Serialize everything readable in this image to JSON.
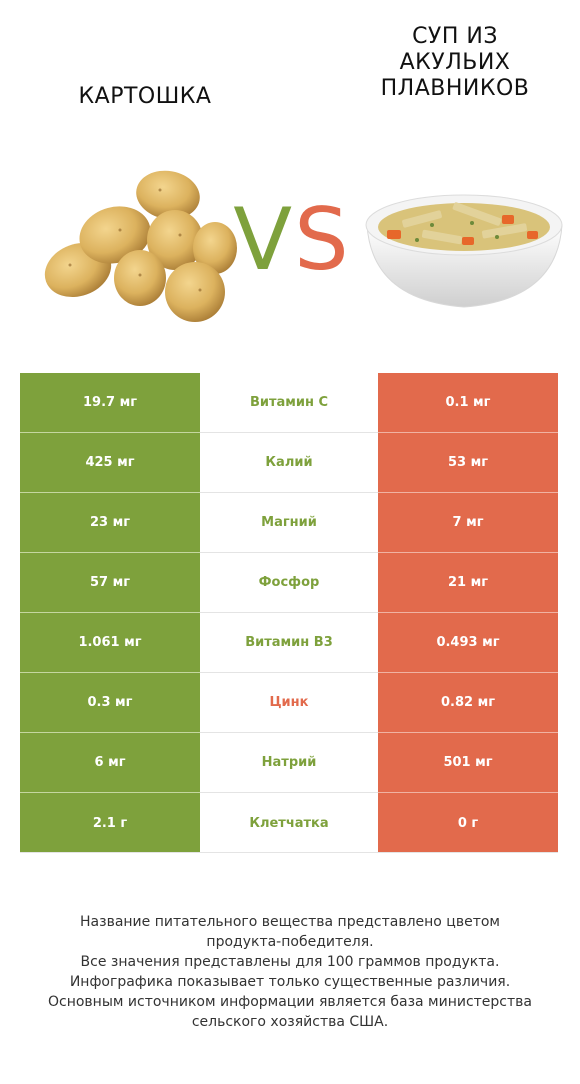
{
  "left_product": {
    "name": "КАРТОШКА",
    "color": "#7ea13c"
  },
  "right_product": {
    "name_lines": [
      "СУП ИЗ",
      "АКУЛЬИХ",
      "ПЛАВНИКОВ"
    ],
    "color": "#e26a4c"
  },
  "vs": {
    "v": "V",
    "s": "S"
  },
  "rows": [
    {
      "left": "19.7 мг",
      "nutrient": "Витамин C",
      "right": "0.1 мг",
      "winner": "left"
    },
    {
      "left": "425 мг",
      "nutrient": "Калий",
      "right": "53 мг",
      "winner": "left"
    },
    {
      "left": "23 мг",
      "nutrient": "Магний",
      "right": "7 мг",
      "winner": "left"
    },
    {
      "left": "57 мг",
      "nutrient": "Фосфор",
      "right": "21 мг",
      "winner": "left"
    },
    {
      "left": "1.061 мг",
      "nutrient": "Витамин B3",
      "right": "0.493 мг",
      "winner": "left"
    },
    {
      "left": "0.3 мг",
      "nutrient": "Цинк",
      "right": "0.82 мг",
      "winner": "right"
    },
    {
      "left": "6 мг",
      "nutrient": "Натрий",
      "right": "501 мг",
      "winner": "left"
    },
    {
      "left": "2.1 г",
      "nutrient": "Клетчатка",
      "right": "0 г",
      "winner": "left"
    }
  ],
  "footer_lines": [
    "Название питательного вещества представлено цветом",
    "продукта-победителя.",
    "Все значения представлены для 100 граммов продукта.",
    "Инфографика показывает только существенные различия.",
    "Основным источником информации является база министерства",
    "сельского хозяйства США."
  ]
}
